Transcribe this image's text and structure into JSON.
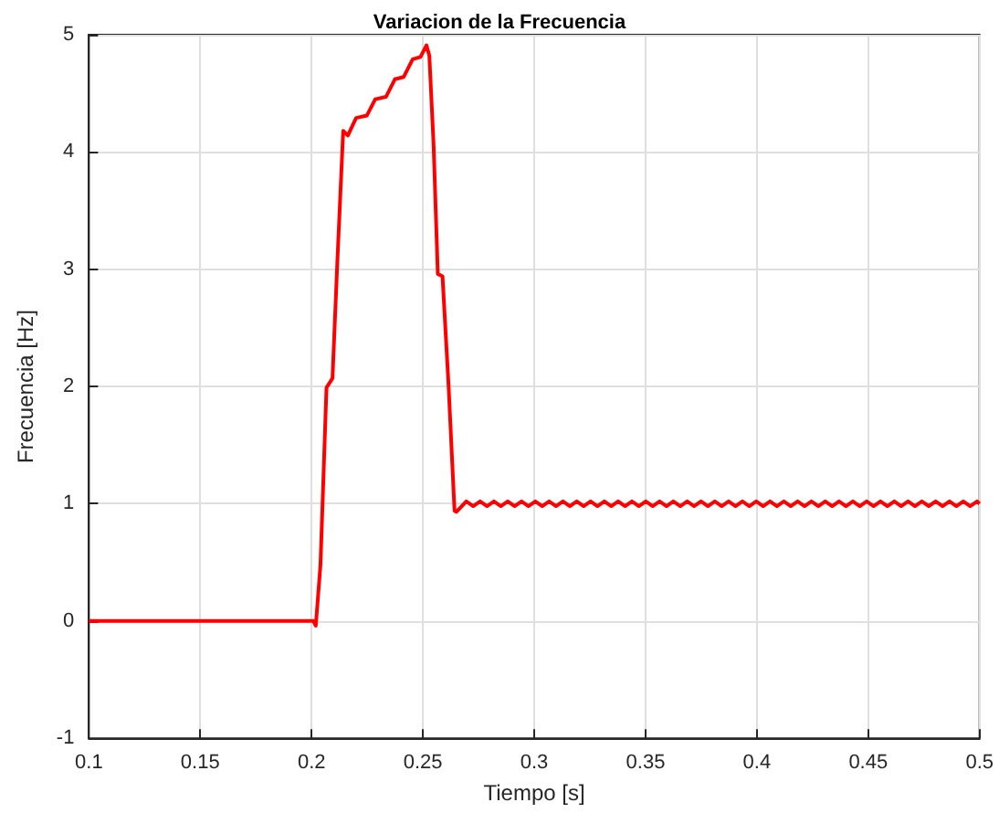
{
  "chart_data": {
    "type": "line",
    "title": "Variacion de la Frecuencia",
    "xlabel": "Tiempo [s]",
    "ylabel": "Frecuencia [Hz]",
    "xlim": [
      0.1,
      0.5
    ],
    "xticks": [
      0.1,
      0.15,
      0.2,
      0.25,
      0.3,
      0.35,
      0.4,
      0.45,
      0.5
    ],
    "ylim": [
      -1,
      5
    ],
    "yticks": [
      -1,
      0,
      1,
      2,
      3,
      4,
      5
    ],
    "grid": true,
    "marker": "none",
    "line_style": "solid",
    "series": [
      {
        "color": "#ff0000",
        "x": [
          0.1,
          0.2008,
          0.2019,
          0.204,
          0.2067,
          0.2094,
          0.2115,
          0.2142,
          0.2163,
          0.22,
          0.2248,
          0.2286,
          0.2334,
          0.2374,
          0.2414,
          0.2454,
          0.2489,
          0.2516,
          0.2529,
          0.2548,
          0.2567,
          0.2588,
          0.2615,
          0.2642,
          0.265,
          0.2695,
          0.2726,
          0.2757,
          0.2788,
          0.2819,
          0.285,
          0.2881,
          0.2912,
          0.2943,
          0.2974,
          0.3005,
          0.3036,
          0.3067,
          0.3098,
          0.3129,
          0.316,
          0.3191,
          0.3222,
          0.3253,
          0.3284,
          0.3315,
          0.3346,
          0.3377,
          0.3408,
          0.3439,
          0.347,
          0.3501,
          0.3532,
          0.3563,
          0.3594,
          0.3625,
          0.3656,
          0.3687,
          0.3718,
          0.3749,
          0.378,
          0.3811,
          0.3842,
          0.3873,
          0.3904,
          0.3935,
          0.3966,
          0.3997,
          0.4028,
          0.4059,
          0.409,
          0.4121,
          0.4152,
          0.4183,
          0.4214,
          0.4245,
          0.4276,
          0.4307,
          0.4338,
          0.4369,
          0.44,
          0.4431,
          0.4462,
          0.4493,
          0.4524,
          0.4555,
          0.4586,
          0.4617,
          0.4648,
          0.4679,
          0.471,
          0.4741,
          0.4772,
          0.4803,
          0.4834,
          0.4865,
          0.4896,
          0.4927,
          0.4958,
          0.4989,
          0.5
        ],
        "values": [
          0,
          0,
          -0.04,
          0.48,
          1.99,
          2.07,
          3.03,
          4.18,
          4.14,
          4.29,
          4.31,
          4.45,
          4.47,
          4.62,
          4.64,
          4.79,
          4.81,
          4.91,
          4.82,
          4.06,
          2.96,
          2.94,
          2.02,
          0.94,
          0.93,
          1.02,
          0.98,
          1.02,
          0.98,
          1.02,
          0.98,
          1.02,
          0.98,
          1.02,
          0.98,
          1.02,
          0.98,
          1.02,
          0.98,
          1.02,
          0.98,
          1.02,
          0.98,
          1.02,
          0.98,
          1.02,
          0.98,
          1.02,
          0.98,
          1.02,
          0.98,
          1.02,
          0.98,
          1.02,
          0.98,
          1.02,
          0.98,
          1.02,
          0.98,
          1.02,
          0.98,
          1.02,
          0.98,
          1.02,
          0.98,
          1.02,
          0.98,
          1.02,
          0.98,
          1.02,
          0.98,
          1.02,
          0.98,
          1.02,
          0.98,
          1.02,
          0.98,
          1.02,
          0.98,
          1.02,
          0.98,
          1.02,
          0.98,
          1.02,
          0.98,
          1.02,
          0.98,
          1.02,
          0.98,
          1.02,
          0.98,
          1.02,
          0.98,
          1.02,
          0.98,
          1.02,
          0.98,
          1.02,
          0.98,
          1.02,
          1
        ]
      }
    ]
  }
}
